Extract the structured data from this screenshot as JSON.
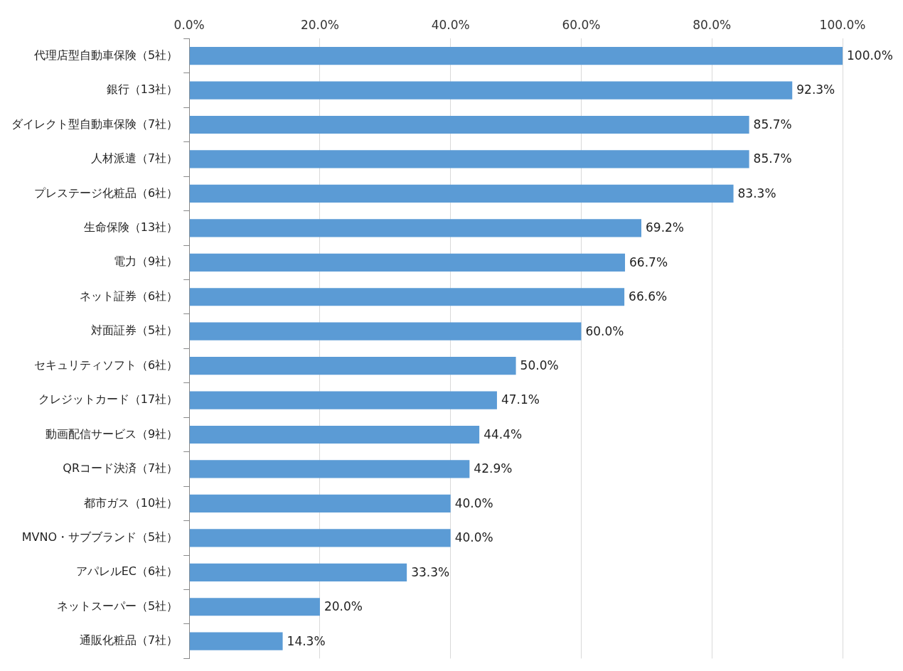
{
  "chart_data": {
    "type": "bar",
    "orientation": "horizontal",
    "categories": [
      "代理店型自動車保険（5社）",
      "銀行（13社）",
      "ダイレクト型自動車保険（7社）",
      "人材派遣（7社）",
      "プレステージ化粧品（6社）",
      "生命保険（13社）",
      "電力（9社）",
      "ネット証券（6社）",
      "対面証券（5社）",
      "セキュリティソフト（6社）",
      "クレジットカード（17社）",
      "動画配信サービス（9社）",
      "QRコード決済（7社）",
      "都市ガス（10社）",
      "MVNO・サブブランド（5社）",
      "アパレルEC（6社）",
      "ネットスーパー（5社）",
      "通販化粧品（7社）"
    ],
    "values": [
      100.0,
      92.3,
      85.7,
      85.7,
      83.3,
      69.2,
      66.7,
      66.6,
      60.0,
      50.0,
      47.1,
      44.4,
      42.9,
      40.0,
      40.0,
      33.3,
      20.0,
      14.3
    ],
    "value_labels": [
      "100.0%",
      "92.3%",
      "85.7%",
      "85.7%",
      "83.3%",
      "69.2%",
      "66.7%",
      "66.6%",
      "60.0%",
      "50.0%",
      "47.1%",
      "44.4%",
      "42.9%",
      "40.0%",
      "40.0%",
      "33.3%",
      "20.0%",
      "14.3%"
    ],
    "color": "#5b9bd5",
    "xlim": [
      0,
      100
    ],
    "xticks": [
      {
        "value": 0,
        "label": "0.0%"
      },
      {
        "value": 20,
        "label": "20.0%"
      },
      {
        "value": 40,
        "label": "40.0%"
      },
      {
        "value": 60,
        "label": "60.0%"
      },
      {
        "value": 80,
        "label": "80.0%"
      },
      {
        "value": 100,
        "label": "100.0%"
      }
    ],
    "grid": true,
    "data_labels": true
  }
}
